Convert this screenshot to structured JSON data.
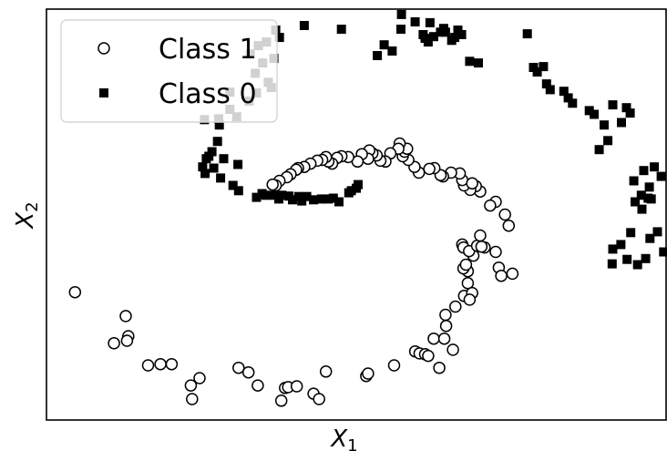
{
  "chart_data": {
    "type": "scatter",
    "xlabel": "X",
    "xlabel_sub": "1",
    "ylabel": "X",
    "ylabel_sub": "2",
    "xlim": [
      0,
      100
    ],
    "ylim": [
      0,
      100
    ],
    "grid": false,
    "ticks_visible": false,
    "legend_position": "top-left",
    "series": [
      {
        "name": "Class 1",
        "marker": "circle",
        "filled": false,
        "color": "#000000",
        "points": [
          [
            4.6,
            31.1
          ],
          [
            10.9,
            18.7
          ],
          [
            12.8,
            25.3
          ],
          [
            13.2,
            20.4
          ],
          [
            13.0,
            19.3
          ],
          [
            16.4,
            13.3
          ],
          [
            18.4,
            13.6
          ],
          [
            20.2,
            13.6
          ],
          [
            23.3,
            8.4
          ],
          [
            24.7,
            10.2
          ],
          [
            23.5,
            5.1
          ],
          [
            31.0,
            12.7
          ],
          [
            32.6,
            11.6
          ],
          [
            34.1,
            8.4
          ],
          [
            37.9,
            4.7
          ],
          [
            38.5,
            7.8
          ],
          [
            39.0,
            8.0
          ],
          [
            40.4,
            8.2
          ],
          [
            43.1,
            6.4
          ],
          [
            44.0,
            5.1
          ],
          [
            45.1,
            11.8
          ],
          [
            51.6,
            10.7
          ],
          [
            51.9,
            11.3
          ],
          [
            56.1,
            13.3
          ],
          [
            59.5,
            16.7
          ],
          [
            60.2,
            16.2
          ],
          [
            61.1,
            16.0
          ],
          [
            61.6,
            15.6
          ],
          [
            62.5,
            19.8
          ],
          [
            64.2,
            19.8
          ],
          [
            63.4,
            12.7
          ],
          [
            64.5,
            22.9
          ],
          [
            64.4,
            25.6
          ],
          [
            65.6,
            17.1
          ],
          [
            66.0,
            27.6
          ],
          [
            67.4,
            30.2
          ],
          [
            68.0,
            33.3
          ],
          [
            68.7,
            30.9
          ],
          [
            68.3,
            29.3
          ],
          [
            68.0,
            36.2
          ],
          [
            67.3,
            36.9
          ],
          [
            67.7,
            37.8
          ],
          [
            67.1,
            42.7
          ],
          [
            67.3,
            42.0
          ],
          [
            68.9,
            40.0
          ],
          [
            68.2,
            41.1
          ],
          [
            69.5,
            42.4
          ],
          [
            70.0,
            44.9
          ],
          [
            70.7,
            42.0
          ],
          [
            72.5,
            40.9
          ],
          [
            73.0,
            37.1
          ],
          [
            70.2,
            42.2
          ],
          [
            73.4,
            35.1
          ],
          [
            75.2,
            35.6
          ],
          [
            74.6,
            47.3
          ],
          [
            74.0,
            50.0
          ],
          [
            72.5,
            53.1
          ],
          [
            71.6,
            52.2
          ],
          [
            70.0,
            55.6
          ],
          [
            69.3,
            56.9
          ],
          [
            68.4,
            56.0
          ],
          [
            67.4,
            57.1
          ],
          [
            67.1,
            58.4
          ],
          [
            68.7,
            57.6
          ],
          [
            66.7,
            60.0
          ],
          [
            65.3,
            60.2
          ],
          [
            64.0,
            59.3
          ],
          [
            63.6,
            59.6
          ],
          [
            62.6,
            61.3
          ],
          [
            61.8,
            61.1
          ],
          [
            60.1,
            60.2
          ],
          [
            59.4,
            61.6
          ],
          [
            58.4,
            63.3
          ],
          [
            57.5,
            64.2
          ],
          [
            57.8,
            65.3
          ],
          [
            58.2,
            66.0
          ],
          [
            57.0,
            67.3
          ],
          [
            56.8,
            66.0
          ],
          [
            55.5,
            64.9
          ],
          [
            54.7,
            62.9
          ],
          [
            53.9,
            63.1
          ],
          [
            53.3,
            64.4
          ],
          [
            52.6,
            64.9
          ],
          [
            52.1,
            65.6
          ],
          [
            51.9,
            63.6
          ],
          [
            50.9,
            64.7
          ],
          [
            50.2,
            62.9
          ],
          [
            48.7,
            64.0
          ],
          [
            47.6,
            64.2
          ],
          [
            46.9,
            63.8
          ],
          [
            46.1,
            62.4
          ],
          [
            45.5,
            62.9
          ],
          [
            45.1,
            64.0
          ],
          [
            44.5,
            63.3
          ],
          [
            43.7,
            63.1
          ],
          [
            42.6,
            62.4
          ],
          [
            41.6,
            61.6
          ],
          [
            40.6,
            61.3
          ],
          [
            40.3,
            60.9
          ],
          [
            39.4,
            59.8
          ],
          [
            38.8,
            59.1
          ],
          [
            37.6,
            58.2
          ],
          [
            37.0,
            57.1
          ],
          [
            36.5,
            57.3
          ]
        ]
      },
      {
        "name": "Class 0",
        "marker": "square",
        "filled": true,
        "color": "#000000",
        "points": [
          [
            33.9,
            54.2
          ],
          [
            34.8,
            55.1
          ],
          [
            35.4,
            54.7
          ],
          [
            36.7,
            54.7
          ],
          [
            37.5,
            53.8
          ],
          [
            38.0,
            54.7
          ],
          [
            39.1,
            54.5
          ],
          [
            39.7,
            53.6
          ],
          [
            40.7,
            54.4
          ],
          [
            41.2,
            53.3
          ],
          [
            42.0,
            54.4
          ],
          [
            43.1,
            53.6
          ],
          [
            44.4,
            53.8
          ],
          [
            45.5,
            53.8
          ],
          [
            46.3,
            54.0
          ],
          [
            47.2,
            53.1
          ],
          [
            48.8,
            55.3
          ],
          [
            49.2,
            55.8
          ],
          [
            50.0,
            56.4
          ],
          [
            50.3,
            57.3
          ],
          [
            31.0,
            55.8
          ],
          [
            30.1,
            57.1
          ],
          [
            28.1,
            58.9
          ],
          [
            27.0,
            61.3
          ],
          [
            26.2,
            64.2
          ],
          [
            25.2,
            61.6
          ],
          [
            25.6,
            60.0
          ],
          [
            25.8,
            63.6
          ],
          [
            26.7,
            65.3
          ],
          [
            27.6,
            67.8
          ],
          [
            28.6,
            63.6
          ],
          [
            30.9,
            62.2
          ],
          [
            27.9,
            71.8
          ],
          [
            25.5,
            73.1
          ],
          [
            27.8,
            73.3
          ],
          [
            29.6,
            75.6
          ],
          [
            29.6,
            79.8
          ],
          [
            30.7,
            73.8
          ],
          [
            33.9,
            79.6
          ],
          [
            32.7,
            77.6
          ],
          [
            33.7,
            84.4
          ],
          [
            34.9,
            86.9
          ],
          [
            35.8,
            82.2
          ],
          [
            36.3,
            80.9
          ],
          [
            36.7,
            88.0
          ],
          [
            32.9,
            89.1
          ],
          [
            34.2,
            91.1
          ],
          [
            35.5,
            92.0
          ],
          [
            37.6,
            93.1
          ],
          [
            37.0,
            94.9
          ],
          [
            41.6,
            96.0
          ],
          [
            47.6,
            95.1
          ],
          [
            54.5,
            91.3
          ],
          [
            53.4,
            88.7
          ],
          [
            55.8,
            89.8
          ],
          [
            57.2,
            95.1
          ],
          [
            57.3,
            98.7
          ],
          [
            59.5,
            96.9
          ],
          [
            60.8,
            93.8
          ],
          [
            61.1,
            92.9
          ],
          [
            61.6,
            92.0
          ],
          [
            62.5,
            93.3
          ],
          [
            61.9,
            96.7
          ],
          [
            63.6,
            94.4
          ],
          [
            64.1,
            95.3
          ],
          [
            64.4,
            94.4
          ],
          [
            65.4,
            92.4
          ],
          [
            65.9,
            93.1
          ],
          [
            66.4,
            94.9
          ],
          [
            67.0,
            93.8
          ],
          [
            68.3,
            87.3
          ],
          [
            69.7,
            86.9
          ],
          [
            77.6,
            94.0
          ],
          [
            78.6,
            85.8
          ],
          [
            80.2,
            86.0
          ],
          [
            79.2,
            84.7
          ],
          [
            80.7,
            81.8
          ],
          [
            81.3,
            80.4
          ],
          [
            83.5,
            80.0
          ],
          [
            84.2,
            78.4
          ],
          [
            84.9,
            77.1
          ],
          [
            87.6,
            75.3
          ],
          [
            88.4,
            74.4
          ],
          [
            90.0,
            71.8
          ],
          [
            91.4,
            76.7
          ],
          [
            92.8,
            72.4
          ],
          [
            93.6,
            76.0
          ],
          [
            94.2,
            74.7
          ],
          [
            89.2,
            65.8
          ],
          [
            90.6,
            68.0
          ],
          [
            94.8,
            58.2
          ],
          [
            96.4,
            60.7
          ],
          [
            95.0,
            53.1
          ],
          [
            96.0,
            54.7
          ],
          [
            96.1,
            51.3
          ],
          [
            97.1,
            54.0
          ],
          [
            97.3,
            56.7
          ],
          [
            99.2,
            59.3
          ],
          [
            98.1,
            61.6
          ],
          [
            97.6,
            53.8
          ],
          [
            91.4,
            41.6
          ],
          [
            93.7,
            39.1
          ],
          [
            95.4,
            37.8
          ],
          [
            97.4,
            44.2
          ],
          [
            92.7,
            42.7
          ],
          [
            91.3,
            38.0
          ],
          [
            94.3,
            45.6
          ],
          [
            96.7,
            39.3
          ],
          [
            99.6,
            40.9
          ],
          [
            98.6,
            45.8
          ]
        ]
      }
    ],
    "legend": [
      {
        "label": "Class 1",
        "marker": "circle"
      },
      {
        "label": "Class 0",
        "marker": "square"
      }
    ]
  }
}
